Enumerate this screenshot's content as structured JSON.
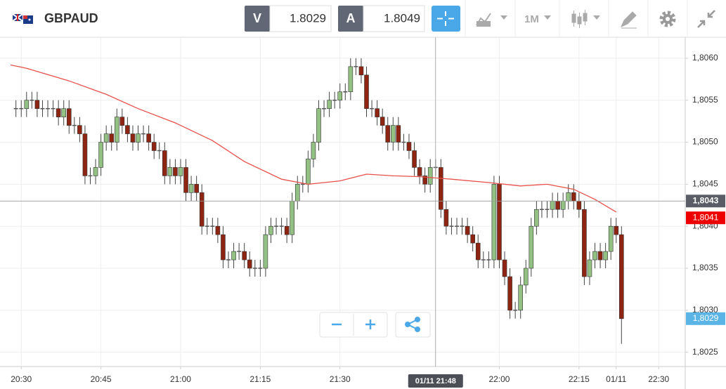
{
  "header": {
    "symbol": "GBPAUD",
    "bid_label": "V",
    "bid": 1.8029,
    "ask_label": "A",
    "ask": 1.8049,
    "timeframe": "1M"
  },
  "chart_data": {
    "type": "candlestick",
    "x": [
      1229,
      1230,
      1231,
      1232,
      1233,
      1234,
      1235,
      1236,
      1237,
      1238,
      1239,
      1240,
      1241,
      1242,
      1243,
      1244,
      1245,
      1246,
      1247,
      1248,
      1249,
      1250,
      1251,
      1252,
      1253,
      1254,
      1255,
      1256,
      1257,
      1258,
      1259,
      1260,
      1261,
      1262,
      1263,
      1264,
      1265,
      1266,
      1267,
      1268,
      1269,
      1270,
      1271,
      1272,
      1273,
      1274,
      1275,
      1276,
      1277,
      1278,
      1279,
      1280,
      1281,
      1282,
      1283,
      1284,
      1285,
      1286,
      1287,
      1288,
      1289,
      1290,
      1291,
      1292,
      1293,
      1294,
      1295,
      1296,
      1297,
      1298,
      1299,
      1300,
      1301,
      1302,
      1303,
      1304,
      1305,
      1306,
      1307,
      1308,
      1309,
      1310,
      1311,
      1312,
      1313,
      1314,
      1315,
      1316,
      1317,
      1318,
      1319,
      1320,
      1321,
      1322,
      1323,
      1324,
      1325,
      1326,
      1327,
      1328,
      1329,
      1330,
      1331,
      1332,
      1333,
      1334,
      1335,
      1336,
      1337,
      1338,
      1339,
      1340,
      1341,
      1342,
      1343
    ],
    "open": [
      1.8054,
      1.8054,
      1.8054,
      1.8055,
      1.8055,
      1.8054,
      1.8054,
      1.8054,
      1.8054,
      1.8053,
      1.8054,
      1.8052,
      1.8052,
      1.8051,
      1.8046,
      1.8046,
      1.8047,
      1.805,
      1.8051,
      1.805,
      1.8053,
      1.8052,
      1.8051,
      1.805,
      1.8051,
      1.8051,
      1.805,
      1.8049,
      1.8049,
      1.8046,
      1.8047,
      1.8046,
      1.8047,
      1.8044,
      1.8045,
      1.8044,
      1.804,
      1.804,
      1.804,
      1.8039,
      1.8036,
      1.8036,
      1.8037,
      1.8037,
      1.8036,
      1.8035,
      1.8035,
      1.8035,
      1.8039,
      1.804,
      1.804,
      1.804,
      1.8039,
      1.8043,
      1.8045,
      1.8045,
      1.8048,
      1.805,
      1.8054,
      1.8054,
      1.8055,
      1.8055,
      1.8056,
      1.8056,
      1.8059,
      1.8059,
      1.8058,
      1.8054,
      1.8054,
      1.8053,
      1.8052,
      1.805,
      1.8052,
      1.805,
      1.805,
      1.8049,
      1.8047,
      1.8046,
      1.8045,
      1.8047,
      1.8047,
      1.8042,
      1.804,
      1.804,
      1.804,
      1.804,
      1.8039,
      1.8038,
      1.8036,
      1.8036,
      1.8036,
      1.8045,
      1.8036,
      1.8034,
      1.803,
      1.803,
      1.8033,
      1.8035,
      1.804,
      1.8042,
      1.8042,
      1.8042,
      1.8043,
      1.8042,
      1.8043,
      1.8044,
      1.8043,
      1.8042,
      1.8034,
      1.8036,
      1.8037,
      1.8036,
      1.8037,
      1.804,
      1.8039
    ],
    "high": [
      1.8055,
      1.8055,
      1.8056,
      1.8056,
      1.8056,
      1.8055,
      1.8055,
      1.8055,
      1.8055,
      1.8055,
      1.8055,
      1.8053,
      1.8053,
      1.8052,
      1.8047,
      1.8048,
      1.8051,
      1.8052,
      1.8052,
      1.8054,
      1.8054,
      1.8053,
      1.8052,
      1.8052,
      1.8052,
      1.8052,
      1.8051,
      1.805,
      1.805,
      1.8048,
      1.8048,
      1.8048,
      1.8048,
      1.8046,
      1.8046,
      1.8045,
      1.8041,
      1.8041,
      1.8041,
      1.804,
      1.8037,
      1.8038,
      1.8038,
      1.8038,
      1.8037,
      1.8036,
      1.8036,
      1.804,
      1.8041,
      1.8041,
      1.8041,
      1.8041,
      1.8044,
      1.8046,
      1.8046,
      1.8049,
      1.8051,
      1.8055,
      1.8055,
      1.8056,
      1.8056,
      1.8057,
      1.8057,
      1.806,
      1.806,
      1.806,
      1.8059,
      1.8055,
      1.8055,
      1.8054,
      1.8053,
      1.8053,
      1.8053,
      1.8051,
      1.8051,
      1.805,
      1.8048,
      1.8047,
      1.8048,
      1.8048,
      1.8048,
      1.8043,
      1.8041,
      1.8041,
      1.8041,
      1.8041,
      1.804,
      1.8039,
      1.8037,
      1.8037,
      1.8046,
      1.8046,
      1.8037,
      1.8035,
      1.8031,
      1.8034,
      1.8036,
      1.8041,
      1.8043,
      1.8043,
      1.8043,
      1.8044,
      1.8044,
      1.8044,
      1.8045,
      1.8045,
      1.8044,
      1.8043,
      1.8037,
      1.8038,
      1.8038,
      1.8038,
      1.8041,
      1.8041,
      1.804
    ],
    "low": [
      1.8053,
      1.8053,
      1.8053,
      1.8054,
      1.8053,
      1.8053,
      1.8053,
      1.8053,
      1.8052,
      1.8052,
      1.8051,
      1.8051,
      1.805,
      1.8045,
      1.8045,
      1.8045,
      1.8046,
      1.8049,
      1.8049,
      1.8049,
      1.8051,
      1.805,
      1.8049,
      1.8049,
      1.805,
      1.8049,
      1.8048,
      1.8048,
      1.8045,
      1.8045,
      1.8045,
      1.8045,
      1.8043,
      1.8043,
      1.8043,
      1.8039,
      1.8039,
      1.8039,
      1.8038,
      1.8035,
      1.8035,
      1.8035,
      1.8036,
      1.8035,
      1.8034,
      1.8034,
      1.8034,
      1.8034,
      1.8038,
      1.8039,
      1.8039,
      1.8038,
      1.8038,
      1.8042,
      1.8044,
      1.8044,
      1.8047,
      1.8049,
      1.8053,
      1.8053,
      1.8054,
      1.8054,
      1.8055,
      1.8055,
      1.8058,
      1.8057,
      1.8053,
      1.8053,
      1.8052,
      1.8051,
      1.8049,
      1.8049,
      1.8049,
      1.8049,
      1.8048,
      1.8046,
      1.8045,
      1.8044,
      1.8044,
      1.8046,
      1.8041,
      1.8039,
      1.8039,
      1.8039,
      1.8039,
      1.8038,
      1.8037,
      1.8035,
      1.8035,
      1.8035,
      1.8035,
      1.8035,
      1.8033,
      1.8029,
      1.8029,
      1.8029,
      1.8032,
      1.8034,
      1.8039,
      1.8041,
      1.8041,
      1.8041,
      1.8041,
      1.8041,
      1.8042,
      1.8042,
      1.8041,
      1.8033,
      1.8033,
      1.8035,
      1.8035,
      1.8035,
      1.8036,
      1.8038,
      1.8026
    ],
    "close": [
      1.8054,
      1.8054,
      1.8055,
      1.8055,
      1.8054,
      1.8054,
      1.8054,
      1.8054,
      1.8053,
      1.8054,
      1.8052,
      1.8052,
      1.8051,
      1.8046,
      1.8046,
      1.8047,
      1.805,
      1.8051,
      1.805,
      1.8053,
      1.8052,
      1.8051,
      1.805,
      1.8051,
      1.8051,
      1.805,
      1.8049,
      1.8049,
      1.8046,
      1.8047,
      1.8046,
      1.8047,
      1.8044,
      1.8045,
      1.8044,
      1.804,
      1.804,
      1.804,
      1.8039,
      1.8036,
      1.8036,
      1.8037,
      1.8037,
      1.8036,
      1.8035,
      1.8035,
      1.8035,
      1.8039,
      1.804,
      1.804,
      1.804,
      1.8039,
      1.8043,
      1.8045,
      1.8045,
      1.8048,
      1.805,
      1.8054,
      1.8054,
      1.8055,
      1.8055,
      1.8056,
      1.8056,
      1.8059,
      1.8059,
      1.8058,
      1.8054,
      1.8054,
      1.8053,
      1.8052,
      1.805,
      1.8052,
      1.805,
      1.805,
      1.8049,
      1.8047,
      1.8046,
      1.8045,
      1.8047,
      1.8047,
      1.8042,
      1.804,
      1.804,
      1.804,
      1.804,
      1.8039,
      1.8038,
      1.8036,
      1.8036,
      1.8036,
      1.8045,
      1.8036,
      1.8034,
      1.803,
      1.803,
      1.8033,
      1.8035,
      1.804,
      1.8042,
      1.8042,
      1.8042,
      1.8043,
      1.8042,
      1.8043,
      1.8044,
      1.8043,
      1.8042,
      1.8034,
      1.8036,
      1.8037,
      1.8036,
      1.8037,
      1.804,
      1.8039,
      1.8029
    ],
    "up_color": "#93c083",
    "down_color": "#8e2412",
    "ma": {
      "color": "#e8504a",
      "x": [
        1228,
        1231,
        1239,
        1246,
        1252,
        1259,
        1266,
        1272,
        1279,
        1284,
        1290,
        1295,
        1300,
        1305,
        1311,
        1318,
        1324,
        1329,
        1334,
        1338,
        1342
      ],
      "values": [
        1.80592,
        1.80588,
        1.80573,
        1.80557,
        1.8054,
        1.80523,
        1.80502,
        1.80477,
        1.80456,
        1.8045,
        1.80454,
        1.80462,
        1.8046,
        1.80459,
        1.80456,
        1.80452,
        1.80448,
        1.8045,
        1.80444,
        1.80432,
        1.80417
      ]
    },
    "xlim": [
      1226,
      1355
    ],
    "xticks": [
      {
        "value": 1230,
        "label": "20:30"
      },
      {
        "value": 1245,
        "label": "20:45"
      },
      {
        "value": 1260,
        "label": "21:00"
      },
      {
        "value": 1275,
        "label": "21:15"
      },
      {
        "value": 1290,
        "label": "21:30"
      },
      {
        "value": 1320,
        "label": "22:00"
      },
      {
        "value": 1335,
        "label": "22:15"
      },
      {
        "value": 1342,
        "label": "01/11"
      },
      {
        "value": 1350,
        "label": "22:30"
      }
    ],
    "ylim": [
      1.80233,
      1.80625
    ],
    "yticks": [
      {
        "value": 1.8025,
        "label": "1,8025"
      },
      {
        "value": 1.803,
        "label": "1,8030"
      },
      {
        "value": 1.8035,
        "label": "1,8035"
      },
      {
        "value": 1.804,
        "label": "1,8040"
      },
      {
        "value": 1.8045,
        "label": "1,8045"
      },
      {
        "value": 1.805,
        "label": "1,8050"
      },
      {
        "value": 1.8055,
        "label": "1,8055"
      },
      {
        "value": 1.806,
        "label": "1,8060"
      }
    ],
    "grid": true,
    "crosshair": {
      "x": {
        "value": 1308,
        "label": "01/11 21:48"
      },
      "y": {
        "value": 1.8043,
        "label": "1,8043"
      }
    },
    "price_markers": [
      {
        "value": 1.8041,
        "label": "1,8041",
        "color": "#ee0000"
      },
      {
        "value": 1.8029,
        "label": "1,8029",
        "color": "#5ab4e6"
      }
    ]
  }
}
